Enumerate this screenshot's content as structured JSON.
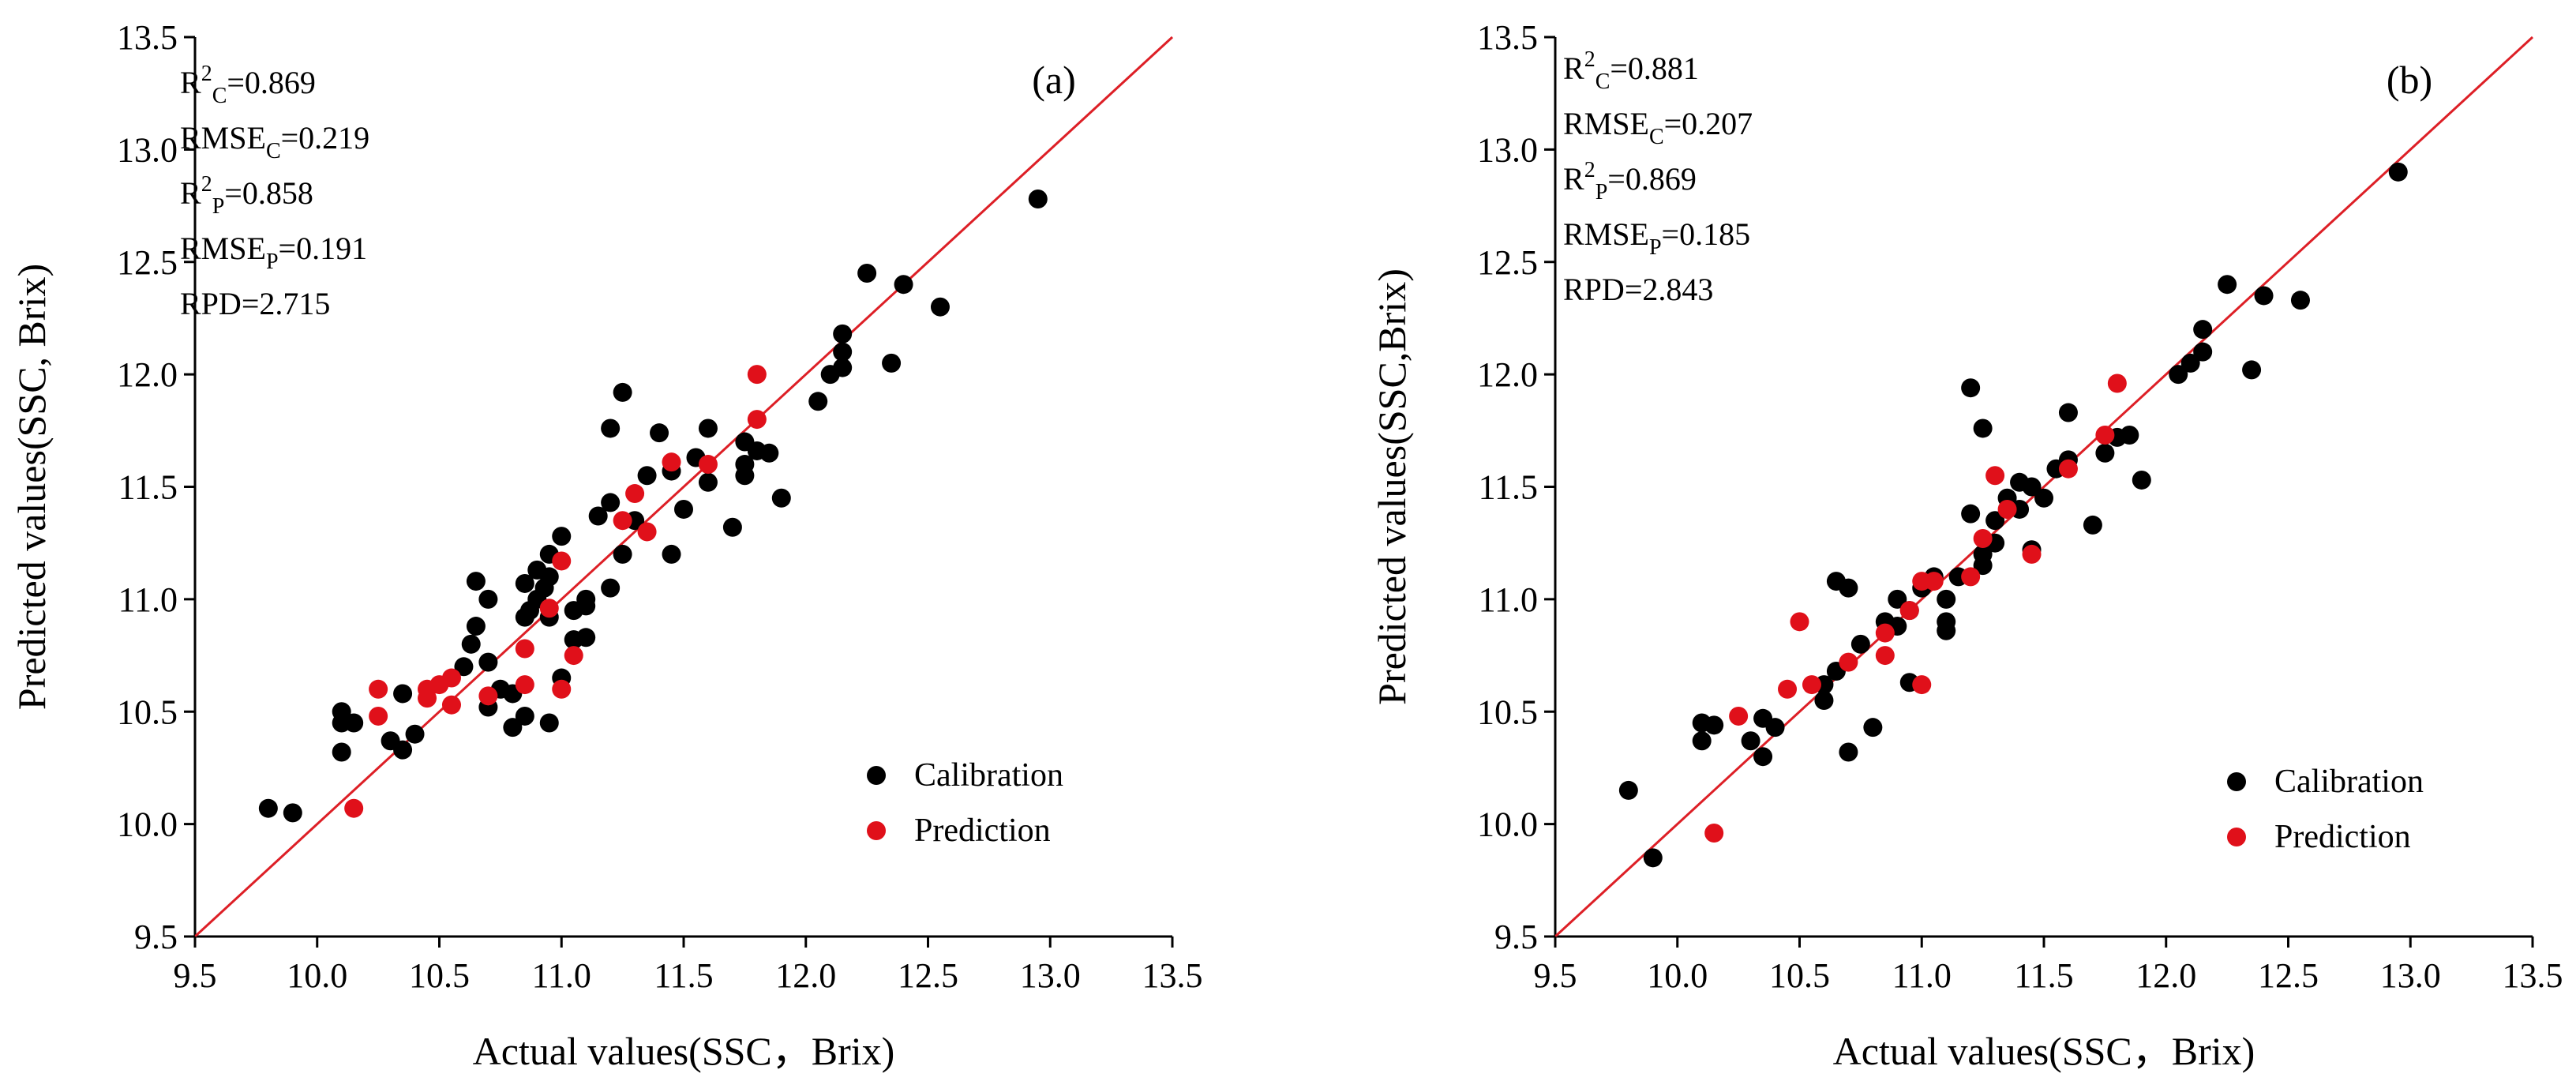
{
  "colors": {
    "calibration": "#000000",
    "prediction": "#e0101a",
    "line": "#dd1f26",
    "axis": "#000000"
  },
  "chart_data": [
    {
      "type": "scatter",
      "panel_label": "(a)",
      "xlabel": "Actual values(SSC，Brix)",
      "ylabel": "Predicted values(SSC, Brix)",
      "xlim": [
        9.5,
        13.5
      ],
      "ylim": [
        9.5,
        13.5
      ],
      "xticks": [
        "9.5",
        "10.0",
        "10.5",
        "11.0",
        "11.5",
        "12.0",
        "12.5",
        "13.0",
        "13.5"
      ],
      "yticks": [
        "9.5",
        "10.0",
        "10.5",
        "11.0",
        "11.5",
        "12.0",
        "12.5",
        "13.0",
        "13.5"
      ],
      "legend": [
        "Calibration",
        "Prediction"
      ],
      "stats": [
        {
          "base": "R",
          "sup": "2",
          "sub": "C",
          "rest": "=0.869"
        },
        {
          "base": "RMSE",
          "sup": "",
          "sub": "C",
          "rest": "=0.219"
        },
        {
          "base": "R",
          "sup": "2",
          "sub": "P",
          "rest": "=0.858"
        },
        {
          "base": "RMSE",
          "sup": "",
          "sub": "P",
          "rest": "=0.191"
        },
        {
          "base": "RPD",
          "sup": "",
          "sub": "",
          "rest": "=2.715"
        }
      ],
      "series": [
        {
          "name": "Calibration",
          "points": [
            [
              9.8,
              10.07
            ],
            [
              9.9,
              10.05
            ],
            [
              10.1,
              10.45
            ],
            [
              10.1,
              10.32
            ],
            [
              10.1,
              10.5
            ],
            [
              10.15,
              10.45
            ],
            [
              10.3,
              10.37
            ],
            [
              10.35,
              10.33
            ],
            [
              10.35,
              10.58
            ],
            [
              10.4,
              10.4
            ],
            [
              10.6,
              10.7
            ],
            [
              10.63,
              10.8
            ],
            [
              10.65,
              10.88
            ],
            [
              10.65,
              11.08
            ],
            [
              10.7,
              11.0
            ],
            [
              10.7,
              10.52
            ],
            [
              10.7,
              10.72
            ],
            [
              10.75,
              10.6
            ],
            [
              10.8,
              10.43
            ],
            [
              10.8,
              10.58
            ],
            [
              10.85,
              10.92
            ],
            [
              10.85,
              11.07
            ],
            [
              10.85,
              10.48
            ],
            [
              10.87,
              10.95
            ],
            [
              10.9,
              11.0
            ],
            [
              10.9,
              11.13
            ],
            [
              10.93,
              11.05
            ],
            [
              10.95,
              11.2
            ],
            [
              10.95,
              11.1
            ],
            [
              10.95,
              10.45
            ],
            [
              10.95,
              10.92
            ],
            [
              11.0,
              11.28
            ],
            [
              11.0,
              10.65
            ],
            [
              11.05,
              10.95
            ],
            [
              11.05,
              10.82
            ],
            [
              11.1,
              10.97
            ],
            [
              11.1,
              11.0
            ],
            [
              11.1,
              10.83
            ],
            [
              11.15,
              11.37
            ],
            [
              11.2,
              11.43
            ],
            [
              11.2,
              11.76
            ],
            [
              11.2,
              11.05
            ],
            [
              11.25,
              11.92
            ],
            [
              11.25,
              11.2
            ],
            [
              11.3,
              11.35
            ],
            [
              11.35,
              11.55
            ],
            [
              11.4,
              11.74
            ],
            [
              11.45,
              11.57
            ],
            [
              11.45,
              11.2
            ],
            [
              11.5,
              11.4
            ],
            [
              11.55,
              11.63
            ],
            [
              11.6,
              11.76
            ],
            [
              11.6,
              11.52
            ],
            [
              11.7,
              11.32
            ],
            [
              11.75,
              11.7
            ],
            [
              11.75,
              11.6
            ],
            [
              11.75,
              11.55
            ],
            [
              11.8,
              11.66
            ],
            [
              11.85,
              11.65
            ],
            [
              11.9,
              11.45
            ],
            [
              12.05,
              11.88
            ],
            [
              12.1,
              12.0
            ],
            [
              12.15,
              12.1
            ],
            [
              12.15,
              12.18
            ],
            [
              12.15,
              12.03
            ],
            [
              12.25,
              12.45
            ],
            [
              12.35,
              12.05
            ],
            [
              12.4,
              12.4
            ],
            [
              12.55,
              12.3
            ],
            [
              12.95,
              12.78
            ]
          ]
        },
        {
          "name": "Prediction",
          "points": [
            [
              10.15,
              10.07
            ],
            [
              10.25,
              10.6
            ],
            [
              10.25,
              10.48
            ],
            [
              10.45,
              10.6
            ],
            [
              10.45,
              10.56
            ],
            [
              10.5,
              10.62
            ],
            [
              10.55,
              10.65
            ],
            [
              10.55,
              10.53
            ],
            [
              10.7,
              10.57
            ],
            [
              10.85,
              10.78
            ],
            [
              10.85,
              10.62
            ],
            [
              10.95,
              10.96
            ],
            [
              11.0,
              11.17
            ],
            [
              11.0,
              10.6
            ],
            [
              11.05,
              10.75
            ],
            [
              11.25,
              11.35
            ],
            [
              11.3,
              11.47
            ],
            [
              11.35,
              11.3
            ],
            [
              11.45,
              11.61
            ],
            [
              11.6,
              11.6
            ],
            [
              11.8,
              11.8
            ],
            [
              11.8,
              12.0
            ]
          ]
        }
      ]
    },
    {
      "type": "scatter",
      "panel_label": "(b)",
      "xlabel": "Actual values(SSC，Brix)",
      "ylabel": "Predicted values(SSC,Brix)",
      "xlim": [
        9.5,
        13.5
      ],
      "ylim": [
        9.5,
        13.5
      ],
      "xticks": [
        "9.5",
        "10.0",
        "10.5",
        "11.0",
        "11.5",
        "12.0",
        "12.5",
        "13.0",
        "13.5"
      ],
      "yticks": [
        "9.5",
        "10.0",
        "10.5",
        "11.0",
        "11.5",
        "12.0",
        "12.5",
        "13.0",
        "13.5"
      ],
      "legend": [
        "Calibration",
        "Prediction"
      ],
      "stats": [
        {
          "base": "R",
          "sup": "2",
          "sub": "C",
          "rest": "=0.881"
        },
        {
          "base": "RMSE",
          "sup": "",
          "sub": "C",
          "rest": "=0.207"
        },
        {
          "base": "R",
          "sup": "2",
          "sub": "P",
          "rest": "=0.869"
        },
        {
          "base": "RMSE",
          "sup": "",
          "sub": "P",
          "rest": "=0.185"
        },
        {
          "base": "RPD",
          "sup": "",
          "sub": "",
          "rest": "=2.843"
        }
      ],
      "series": [
        {
          "name": "Calibration",
          "points": [
            [
              9.8,
              10.15
            ],
            [
              9.9,
              9.85
            ],
            [
              10.1,
              10.45
            ],
            [
              10.1,
              10.37
            ],
            [
              10.15,
              10.44
            ],
            [
              10.3,
              10.37
            ],
            [
              10.35,
              10.47
            ],
            [
              10.35,
              10.3
            ],
            [
              10.4,
              10.43
            ],
            [
              10.6,
              10.55
            ],
            [
              10.6,
              10.62
            ],
            [
              10.65,
              10.68
            ],
            [
              10.65,
              11.08
            ],
            [
              10.7,
              11.05
            ],
            [
              10.7,
              10.32
            ],
            [
              10.75,
              10.8
            ],
            [
              10.8,
              10.43
            ],
            [
              10.85,
              10.9
            ],
            [
              10.9,
              11.0
            ],
            [
              10.9,
              10.88
            ],
            [
              10.95,
              10.63
            ],
            [
              10.95,
              10.95
            ],
            [
              11.0,
              11.05
            ],
            [
              11.05,
              11.1
            ],
            [
              11.1,
              11.0
            ],
            [
              11.1,
              10.9
            ],
            [
              11.1,
              10.86
            ],
            [
              11.15,
              11.1
            ],
            [
              11.2,
              11.38
            ],
            [
              11.2,
              11.94
            ],
            [
              11.25,
              11.76
            ],
            [
              11.25,
              11.2
            ],
            [
              11.25,
              11.15
            ],
            [
              11.3,
              11.25
            ],
            [
              11.3,
              11.35
            ],
            [
              11.35,
              11.45
            ],
            [
              11.4,
              11.52
            ],
            [
              11.4,
              11.4
            ],
            [
              11.45,
              11.5
            ],
            [
              11.45,
              11.22
            ],
            [
              11.5,
              11.45
            ],
            [
              11.55,
              11.58
            ],
            [
              11.6,
              11.62
            ],
            [
              11.6,
              11.83
            ],
            [
              11.7,
              11.33
            ],
            [
              11.75,
              11.65
            ],
            [
              11.8,
              11.72
            ],
            [
              11.85,
              11.73
            ],
            [
              11.9,
              11.53
            ],
            [
              12.05,
              12.0
            ],
            [
              12.1,
              12.05
            ],
            [
              12.15,
              12.1
            ],
            [
              12.15,
              12.2
            ],
            [
              12.25,
              12.4
            ],
            [
              12.35,
              12.02
            ],
            [
              12.4,
              12.35
            ],
            [
              12.55,
              12.33
            ],
            [
              12.95,
              12.9
            ]
          ]
        },
        {
          "name": "Prediction",
          "points": [
            [
              10.15,
              9.96
            ],
            [
              10.25,
              10.48
            ],
            [
              10.45,
              10.6
            ],
            [
              10.5,
              10.9
            ],
            [
              10.55,
              10.62
            ],
            [
              10.7,
              10.72
            ],
            [
              10.85,
              10.75
            ],
            [
              10.85,
              10.85
            ],
            [
              10.95,
              10.95
            ],
            [
              11.0,
              11.08
            ],
            [
              11.0,
              10.62
            ],
            [
              11.05,
              11.08
            ],
            [
              11.2,
              11.1
            ],
            [
              11.25,
              11.27
            ],
            [
              11.3,
              11.55
            ],
            [
              11.35,
              11.4
            ],
            [
              11.45,
              11.2
            ],
            [
              11.6,
              11.58
            ],
            [
              11.75,
              11.73
            ],
            [
              11.8,
              11.96
            ]
          ]
        }
      ]
    }
  ]
}
